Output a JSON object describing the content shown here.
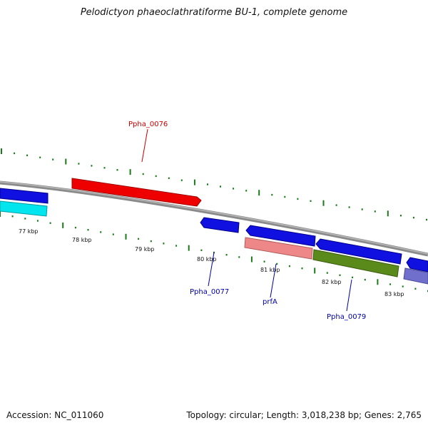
{
  "title": "Pelodictyon phaeoclathratiforme BU-1, complete genome",
  "accession_text": "Accession: NC_011060",
  "topology_text": "Topology: circular; Length: 3,018,238 bp; Genes: 2,765",
  "tick_labels": [
    "77 kbp",
    "78 kbp",
    "79 kbp",
    "80 kbp",
    "81 kbp",
    "82 kbp",
    "83 kbp"
  ],
  "gene_labels": [
    {
      "name": "Ppha_0076",
      "color": "#cc0000"
    },
    {
      "name": "Ppha_0077",
      "color": "#0000aa"
    },
    {
      "name": "prfA",
      "color": "#0000aa"
    },
    {
      "name": "Ppha_0079",
      "color": "#0000aa"
    }
  ],
  "colors": {
    "backbone": "#8a8a8a",
    "tick": "#1a7a1a",
    "blue_gene": "#1010e0",
    "red_gene": "#ee0000",
    "cyan_gene": "#00e5ee",
    "pink_gene": "#ee8888",
    "olive_gene": "#5a8a1a",
    "purple_gene": "#7070cc"
  }
}
